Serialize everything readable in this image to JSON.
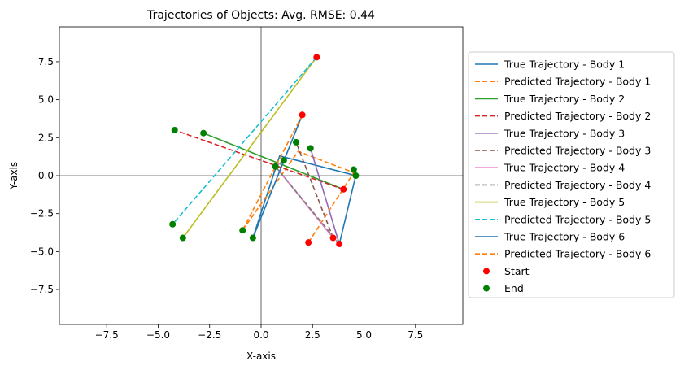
{
  "chart_data": {
    "type": "line",
    "title": "Trajectories of Objects: Avg. RMSE: 0.44",
    "xlabel": "X-axis",
    "ylabel": "Y-axis",
    "xlim": [
      -9.8,
      9.8
    ],
    "ylim": [
      -9.8,
      9.8
    ],
    "xticks": [
      -7.5,
      -5.0,
      -2.5,
      0.0,
      2.5,
      5.0,
      7.5
    ],
    "yticks": [
      -7.5,
      -5.0,
      -2.5,
      0.0,
      2.5,
      5.0,
      7.5
    ],
    "xtick_labels": [
      "−7.5",
      "−5.0",
      "−2.5",
      "0.0",
      "2.5",
      "5.0",
      "7.5"
    ],
    "ytick_labels": [
      "−7.5",
      "−5.0",
      "−2.5",
      "0.0",
      "2.5",
      "5.0",
      "7.5"
    ],
    "grid": false,
    "reference_lines": [
      "x=0",
      "y=0"
    ],
    "legend_position": "outside-right",
    "series": [
      {
        "name": "True Trajectory - Body 1",
        "style": "solid",
        "color": "#1f77b4",
        "x": [
          3.8,
          4.6,
          0.9,
          -0.4
        ],
        "y": [
          -4.5,
          0.0,
          1.3,
          -4.1
        ]
      },
      {
        "name": "Predicted Trajectory - Body 1",
        "style": "dashed",
        "color": "#ff7f0e",
        "x": [
          2.3,
          4.5,
          1.8,
          -0.9
        ],
        "y": [
          -4.4,
          0.2,
          1.6,
          -3.6
        ]
      },
      {
        "name": "True Trajectory - Body 2",
        "style": "solid",
        "color": "#2ca02c",
        "x": [
          4.0,
          -2.8
        ],
        "y": [
          -0.9,
          2.8
        ]
      },
      {
        "name": "Predicted Trajectory - Body 2",
        "style": "dashed",
        "color": "#d62728",
        "x": [
          4.0,
          -4.2
        ],
        "y": [
          -0.9,
          3.0
        ]
      },
      {
        "name": "True Trajectory - Body 3",
        "style": "solid",
        "color": "#9467bd",
        "x": [
          3.8,
          2.4
        ],
        "y": [
          -4.5,
          1.8
        ]
      },
      {
        "name": "Predicted Trajectory - Body 3",
        "style": "dashed",
        "color": "#8c564b",
        "x": [
          3.5,
          1.7
        ],
        "y": [
          -4.1,
          2.2
        ]
      },
      {
        "name": "True Trajectory - Body 4",
        "style": "solid",
        "color": "#e377c2",
        "x": [
          3.5,
          0.7,
          1.1
        ],
        "y": [
          -4.1,
          0.6,
          1.0
        ]
      },
      {
        "name": "Predicted Trajectory - Body 4",
        "style": "dashed",
        "color": "#7f7f7f",
        "x": [
          3.8,
          0.7
        ],
        "y": [
          -4.5,
          0.6
        ]
      },
      {
        "name": "True Trajectory - Body 5",
        "style": "solid",
        "color": "#bcbd22",
        "x": [
          2.7,
          -3.8
        ],
        "y": [
          7.8,
          -4.1
        ]
      },
      {
        "name": "Predicted Trajectory - Body 5",
        "style": "dashed",
        "color": "#17becf",
        "x": [
          2.7,
          -4.3
        ],
        "y": [
          7.8,
          -3.2
        ]
      },
      {
        "name": "True Trajectory - Body 6",
        "style": "solid",
        "color": "#1f77b4",
        "x": [
          2.0,
          -0.4
        ],
        "y": [
          4.0,
          -4.1
        ]
      },
      {
        "name": "Predicted Trajectory - Body 6",
        "style": "dashed",
        "color": "#ff7f0e",
        "x": [
          2.0,
          -0.9
        ],
        "y": [
          4.0,
          -3.6
        ]
      }
    ],
    "markers": [
      {
        "name": "Start",
        "color": "#ff0000",
        "points": [
          [
            2.7,
            7.8
          ],
          [
            2.0,
            4.0
          ],
          [
            4.0,
            -0.9
          ],
          [
            3.5,
            -4.1
          ],
          [
            3.8,
            -4.5
          ],
          [
            2.3,
            -4.4
          ]
        ]
      },
      {
        "name": "End",
        "color": "#008000",
        "points": [
          [
            -4.2,
            3.0
          ],
          [
            -2.8,
            2.8
          ],
          [
            1.7,
            2.2
          ],
          [
            2.4,
            1.8
          ],
          [
            1.1,
            1.0
          ],
          [
            0.7,
            0.6
          ],
          [
            4.5,
            0.4
          ],
          [
            4.6,
            0.0
          ],
          [
            -4.3,
            -3.2
          ],
          [
            -3.8,
            -4.1
          ],
          [
            -0.9,
            -3.6
          ],
          [
            -0.4,
            -4.1
          ]
        ]
      }
    ]
  }
}
